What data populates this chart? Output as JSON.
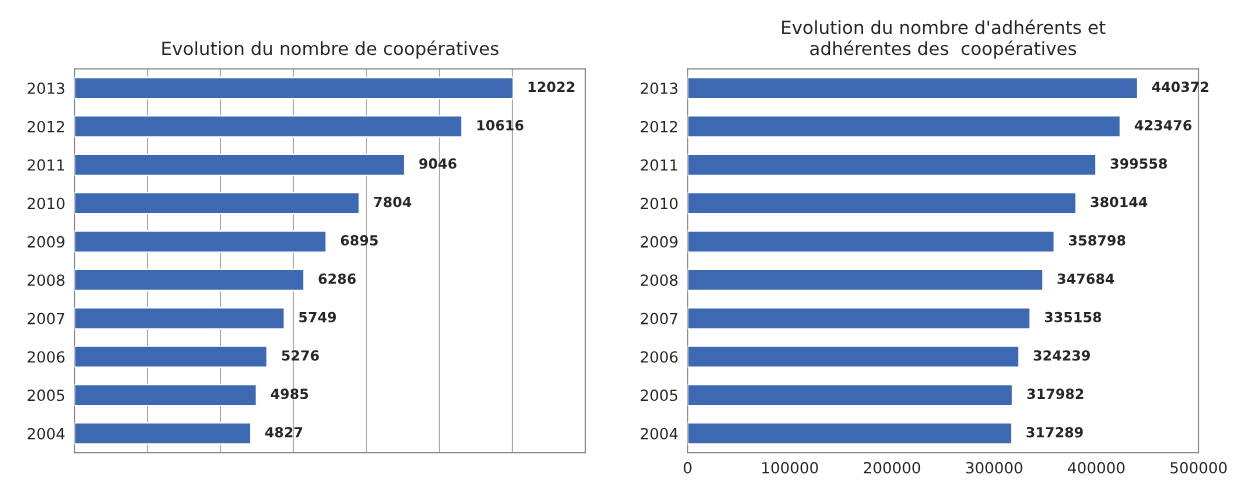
{
  "chart_data": [
    {
      "type": "bar",
      "orientation": "horizontal",
      "title": "Evolution du nombre de coopératives",
      "categories": [
        "2013",
        "2012",
        "2011",
        "2010",
        "2009",
        "2008",
        "2007",
        "2006",
        "2005",
        "2004"
      ],
      "values": [
        12022,
        10616,
        9046,
        7804,
        6895,
        6286,
        5749,
        5276,
        4985,
        4827
      ],
      "color": "#3d69b3",
      "data_labels": true,
      "xlim": [
        0,
        14000
      ],
      "xticks": [
        {
          "value": 0,
          "label": null
        },
        {
          "value": 2000,
          "label": null
        },
        {
          "value": 4000,
          "label": null
        },
        {
          "value": 6000,
          "label": null
        },
        {
          "value": 8000,
          "label": null
        },
        {
          "value": 10000,
          "label": null
        },
        {
          "value": 12000,
          "label": null
        },
        {
          "value": 14000,
          "label": null
        }
      ],
      "grid": "x",
      "tick_labels": "y",
      "legend": false
    },
    {
      "type": "bar",
      "orientation": "horizontal",
      "title": "Evolution du nombre d'adhérents et\nadhérentes des  coopératives",
      "categories": [
        "2013",
        "2012",
        "2011",
        "2010",
        "2009",
        "2008",
        "2007",
        "2006",
        "2005",
        "2004"
      ],
      "values": [
        440372,
        423476,
        399558,
        380144,
        358798,
        347684,
        335158,
        324239,
        317982,
        317289
      ],
      "color": "#3d69b3",
      "data_labels": true,
      "xlim": [
        0,
        500000
      ],
      "xticks": [
        0,
        100000,
        200000,
        300000,
        400000,
        500000
      ],
      "grid": false,
      "legend": false
    }
  ]
}
